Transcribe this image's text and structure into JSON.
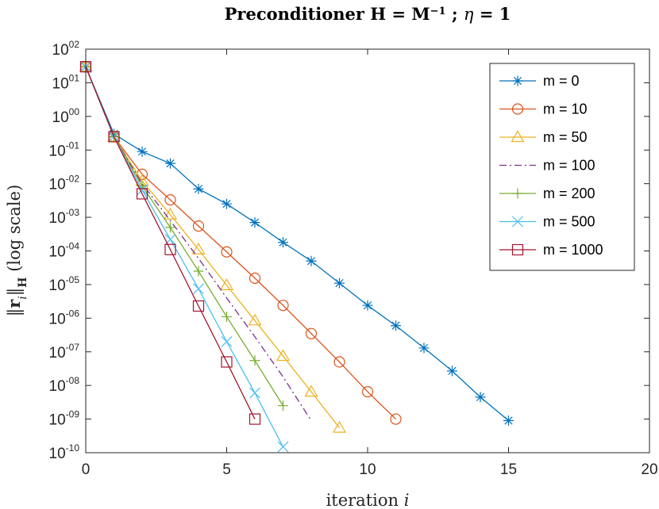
{
  "chart_data": {
    "type": "line",
    "title": "Preconditioner H = M⁻¹ ; η = 1",
    "xlabel": "iteration i",
    "ylabel": "‖rᵢ‖H (log scale)",
    "xscale": "linear",
    "yscale": "log",
    "xlim": [
      0,
      20
    ],
    "ylim_log10": [
      -10,
      2
    ],
    "x_ticks": [
      0,
      5,
      10,
      15,
      20
    ],
    "y_tick_exponents": [
      2,
      1,
      0,
      -1,
      -2,
      -3,
      -4,
      -5,
      -6,
      -7,
      -8,
      -9,
      -10
    ],
    "y_tick_base": "10",
    "y_tick_labels": [
      "02",
      "01",
      "00",
      "-01",
      "-02",
      "-03",
      "-04",
      "-05",
      "-06",
      "-07",
      "-08",
      "-09",
      "-10"
    ],
    "legend_position": "top-right",
    "grid": false,
    "series": [
      {
        "name": "m = 0",
        "color": "#0072BD",
        "marker": "asterisk",
        "dash": "solid",
        "x": [
          0,
          1,
          2,
          3,
          4,
          5,
          6,
          7,
          8,
          9,
          10,
          11,
          12,
          13,
          14,
          15
        ],
        "y": [
          30,
          0.3,
          0.09,
          0.04,
          0.007,
          0.0025,
          0.0007,
          0.00018,
          5e-05,
          1.1e-05,
          2.4e-06,
          6e-07,
          1.3e-07,
          2.7e-08,
          4.5e-09,
          9e-10
        ]
      },
      {
        "name": "m = 10",
        "color": "#D95319",
        "marker": "circle",
        "dash": "solid",
        "x": [
          0,
          1,
          2,
          3,
          4,
          5,
          6,
          7,
          8,
          9,
          10,
          11
        ],
        "y": [
          30,
          0.25,
          0.019,
          0.0033,
          0.00055,
          9.35e-05,
          1.55e-05,
          2.4e-06,
          3.5e-07,
          5e-08,
          6.5e-09,
          1e-09
        ]
      },
      {
        "name": "m = 50",
        "color": "#EDB120",
        "marker": "triangle",
        "dash": "solid",
        "x": [
          0,
          1,
          2,
          3,
          4,
          5,
          6,
          7,
          8,
          9
        ],
        "y": [
          30,
          0.25,
          0.012,
          0.0012,
          0.00011,
          9.5e-06,
          8.5e-07,
          7.5e-08,
          6.5e-09,
          5.5e-10
        ]
      },
      {
        "name": "m = 100",
        "color": "#7E2F8E",
        "marker": "none",
        "dash": "dashdot",
        "x": [
          0,
          1,
          2,
          3,
          4,
          5,
          6,
          7,
          8
        ],
        "y": [
          30,
          0.25,
          0.01,
          0.0008,
          6e-05,
          4e-06,
          2.8e-07,
          1.8e-08,
          9e-10
        ]
      },
      {
        "name": "m = 200",
        "color": "#77AC30",
        "marker": "plus",
        "dash": "solid",
        "x": [
          0,
          1,
          2,
          3,
          4,
          5,
          6,
          7
        ],
        "y": [
          30,
          0.25,
          0.0085,
          0.0005,
          2.5e-05,
          1.1e-06,
          5.5e-08,
          2.5e-09
        ]
      },
      {
        "name": "m = 500",
        "color": "#4DBEEE",
        "marker": "cross",
        "dash": "solid",
        "x": [
          0,
          1,
          2,
          3,
          4,
          5,
          6,
          7
        ],
        "y": [
          30,
          0.25,
          0.0065,
          0.00022,
          7.5e-06,
          2e-07,
          6e-09,
          1.5e-10
        ]
      },
      {
        "name": "m = 1000",
        "color": "#A2142F",
        "marker": "square",
        "dash": "solid",
        "x": [
          0,
          1,
          2,
          3,
          4,
          5,
          6
        ],
        "y": [
          30,
          0.25,
          0.005,
          0.00011,
          2.3e-06,
          5e-08,
          1e-09
        ]
      }
    ]
  }
}
